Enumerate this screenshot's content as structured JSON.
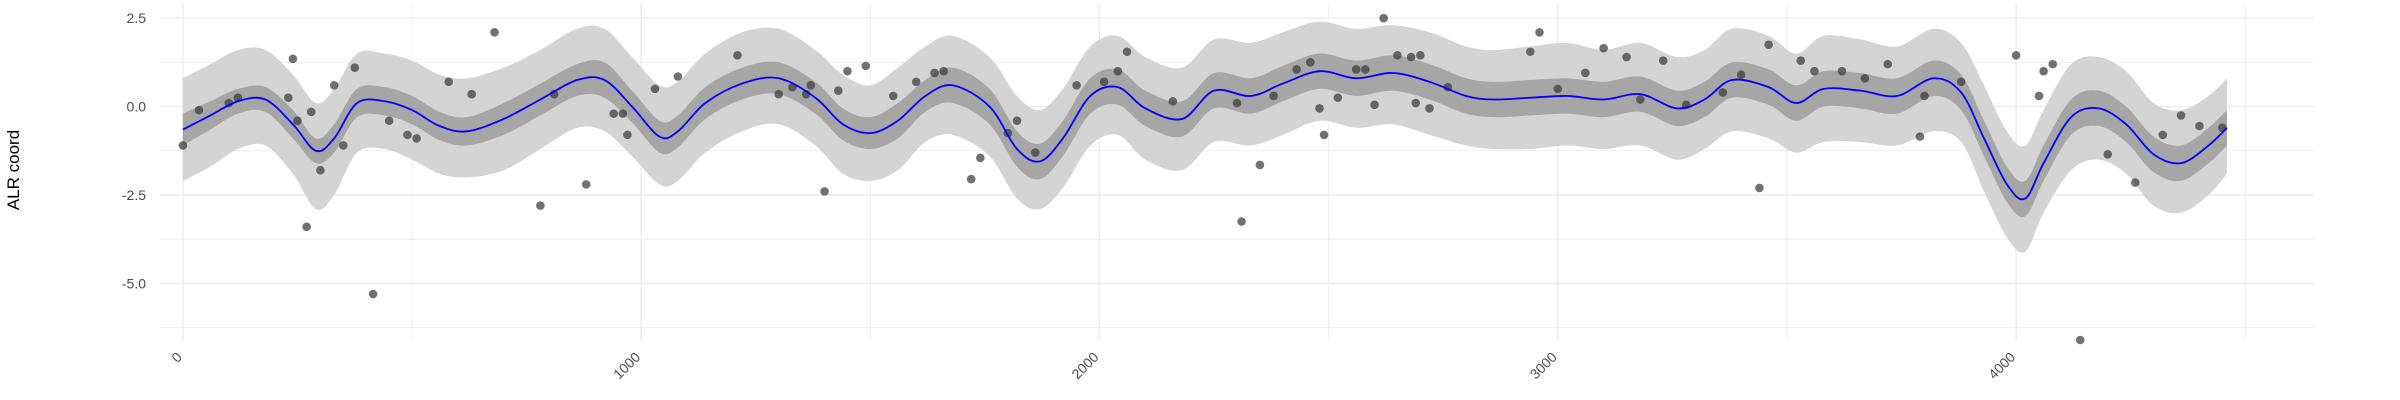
{
  "chart_data": {
    "type": "line",
    "ylabel": "ALR coord",
    "xlabel": "",
    "xlim": [
      -50,
      4650
    ],
    "ylim": [
      -6.6,
      2.9
    ],
    "x_ticks": [
      0,
      1000,
      2000,
      3000,
      4000
    ],
    "x_tick_labels": [
      "0",
      "1000",
      "2000",
      "3000",
      "4000"
    ],
    "y_ticks": [
      2.5,
      0,
      -2.5,
      -5
    ],
    "y_tick_labels": [
      "2.5",
      "0.0",
      "-2.5",
      "-5.0"
    ],
    "grid": true,
    "colors": {
      "mean_line": "#0000ff",
      "inner_band": "#a6a6a6",
      "outer_band": "#d4d4d4",
      "points": "#3a3a3a",
      "grid": "#ebebeb"
    },
    "series": [
      {
        "kind": "mean",
        "x": [
          0,
          60,
          120,
          180,
          240,
          290,
          330,
          380,
          440,
          500,
          560,
          620,
          700,
          780,
          860,
          920,
          980,
          1040,
          1080,
          1140,
          1220,
          1300,
          1380,
          1440,
          1500,
          1560,
          1620,
          1680,
          1760,
          1820,
          1870,
          1920,
          1980,
          2040,
          2100,
          2180,
          2250,
          2330,
          2400,
          2480,
          2560,
          2640,
          2720,
          2800,
          2860,
          2940,
          3020,
          3100,
          3180,
          3260,
          3320,
          3380,
          3460,
          3520,
          3580,
          3660,
          3740,
          3820,
          3880,
          3930,
          3980,
          4020,
          4060,
          4120,
          4180,
          4240,
          4300,
          4360,
          4420,
          4460
        ],
        "y": [
          -0.65,
          -0.25,
          0.15,
          0.2,
          -0.5,
          -1.25,
          -0.9,
          0.1,
          0.15,
          -0.1,
          -0.55,
          -0.7,
          -0.35,
          0.2,
          0.75,
          0.75,
          0.0,
          -0.85,
          -0.7,
          0.1,
          0.65,
          0.8,
          0.25,
          -0.5,
          -0.75,
          -0.4,
          0.3,
          0.6,
          0.0,
          -1.2,
          -1.55,
          -0.9,
          0.3,
          0.55,
          -0.05,
          -0.35,
          0.45,
          0.3,
          0.65,
          1.0,
          0.8,
          0.95,
          0.7,
          0.3,
          0.2,
          0.25,
          0.3,
          0.2,
          0.35,
          -0.05,
          0.2,
          0.75,
          0.55,
          0.1,
          0.5,
          0.45,
          0.3,
          0.8,
          0.4,
          -0.9,
          -2.2,
          -2.6,
          -1.6,
          -0.3,
          -0.05,
          -0.5,
          -1.35,
          -1.6,
          -1.1,
          -0.6
        ]
      },
      {
        "kind": "inner_band",
        "lower": [
          -1.1,
          -0.65,
          -0.2,
          -0.15,
          -0.9,
          -1.6,
          -1.3,
          -0.3,
          -0.25,
          -0.5,
          -0.95,
          -1.1,
          -0.8,
          -0.25,
          0.3,
          0.25,
          -0.45,
          -1.3,
          -1.15,
          -0.35,
          0.2,
          0.35,
          -0.2,
          -0.95,
          -1.2,
          -0.9,
          -0.15,
          0.1,
          -0.5,
          -1.7,
          -2.05,
          -1.4,
          -0.2,
          0.05,
          -0.55,
          -0.85,
          -0.05,
          -0.2,
          0.15,
          0.5,
          0.3,
          0.45,
          0.2,
          -0.2,
          -0.3,
          -0.25,
          -0.2,
          -0.3,
          -0.15,
          -0.55,
          -0.3,
          0.25,
          0.05,
          -0.4,
          0.0,
          -0.05,
          -0.2,
          0.3,
          -0.1,
          -1.4,
          -2.7,
          -3.1,
          -2.1,
          -0.8,
          -0.55,
          -1.0,
          -1.85,
          -2.1,
          -1.6,
          -1.1
        ],
        "upper": [
          -0.2,
          0.15,
          0.5,
          0.55,
          -0.1,
          -0.9,
          -0.5,
          0.5,
          0.55,
          0.3,
          -0.15,
          -0.3,
          0.1,
          0.65,
          1.2,
          1.25,
          0.45,
          -0.4,
          -0.25,
          0.55,
          1.1,
          1.25,
          0.7,
          -0.05,
          -0.3,
          0.1,
          0.75,
          1.1,
          0.5,
          -0.7,
          -1.05,
          -0.4,
          0.8,
          1.05,
          0.45,
          0.15,
          0.95,
          0.8,
          1.15,
          1.5,
          1.3,
          1.45,
          1.2,
          0.8,
          0.7,
          0.75,
          0.8,
          0.7,
          0.85,
          0.45,
          0.7,
          1.25,
          1.05,
          0.6,
          1.0,
          0.95,
          0.8,
          1.3,
          0.9,
          -0.4,
          -1.7,
          -2.1,
          -1.1,
          0.2,
          0.45,
          0.0,
          -0.85,
          -1.1,
          -0.6,
          -0.1
        ]
      },
      {
        "kind": "outer_band",
        "lower": [
          -2.1,
          -1.7,
          -1.2,
          -1.1,
          -1.9,
          -2.9,
          -2.5,
          -1.3,
          -1.2,
          -1.5,
          -1.9,
          -2.0,
          -1.8,
          -1.2,
          -0.6,
          -0.7,
          -1.4,
          -2.2,
          -2.1,
          -1.3,
          -0.7,
          -0.5,
          -1.1,
          -1.9,
          -2.1,
          -1.8,
          -1.0,
          -0.8,
          -1.4,
          -2.6,
          -2.9,
          -2.3,
          -1.1,
          -0.8,
          -1.5,
          -1.8,
          -1.0,
          -1.1,
          -0.8,
          -0.4,
          -0.6,
          -0.5,
          -0.8,
          -1.1,
          -1.2,
          -1.2,
          -1.1,
          -1.2,
          -1.1,
          -1.5,
          -1.2,
          -0.7,
          -0.9,
          -1.3,
          -1.0,
          -1.0,
          -1.1,
          -0.7,
          -1.0,
          -2.4,
          -3.7,
          -4.1,
          -3.0,
          -1.8,
          -1.5,
          -1.9,
          -2.8,
          -3.0,
          -2.5,
          -1.9
        ],
        "upper": [
          0.8,
          1.2,
          1.6,
          1.6,
          0.9,
          0.1,
          0.5,
          1.5,
          1.5,
          1.3,
          0.9,
          0.8,
          1.1,
          1.6,
          2.2,
          2.2,
          1.4,
          0.6,
          0.7,
          1.5,
          2.1,
          2.2,
          1.6,
          0.9,
          0.6,
          1.1,
          1.7,
          2.0,
          1.4,
          0.3,
          -0.1,
          0.5,
          1.7,
          2.0,
          1.4,
          1.1,
          1.9,
          1.8,
          2.1,
          2.4,
          2.2,
          2.3,
          2.1,
          1.7,
          1.6,
          1.7,
          1.8,
          1.6,
          1.8,
          1.4,
          1.6,
          2.2,
          2.0,
          1.5,
          2.0,
          1.9,
          1.7,
          2.2,
          1.8,
          0.6,
          -0.7,
          -1.1,
          -0.1,
          1.2,
          1.4,
          1.0,
          0.1,
          -0.1,
          0.3,
          0.8
        ]
      }
    ],
    "points": {
      "x": [
        0,
        35,
        100,
        120,
        230,
        240,
        250,
        270,
        280,
        300,
        330,
        350,
        375,
        415,
        450,
        490,
        510,
        580,
        630,
        680,
        780,
        810,
        880,
        940,
        960,
        970,
        1030,
        1080,
        1210,
        1300,
        1330,
        1360,
        1370,
        1400,
        1430,
        1450,
        1490,
        1550,
        1600,
        1640,
        1660,
        1720,
        1740,
        1800,
        1820,
        1860,
        1950,
        2010,
        2040,
        2060,
        2160,
        2300,
        2310,
        2350,
        2380,
        2430,
        2460,
        2480,
        2490,
        2520,
        2560,
        2580,
        2600,
        2620,
        2650,
        2680,
        2690,
        2700,
        2720,
        2760,
        2940,
        2960,
        3000,
        3060,
        3100,
        3150,
        3180,
        3230,
        3280,
        3360,
        3400,
        3440,
        3460,
        3530,
        3560,
        3620,
        3670,
        3720,
        3790,
        3800,
        3880,
        4000,
        4050,
        4060,
        4080,
        4140,
        4200,
        4260,
        4320,
        4360,
        4400,
        4450
      ],
      "y": [
        -1.1,
        -0.1,
        0.1,
        0.25,
        0.25,
        1.35,
        -0.4,
        -3.4,
        -0.15,
        -1.8,
        0.6,
        -1.1,
        1.1,
        -5.3,
        -0.4,
        -0.8,
        -0.9,
        0.7,
        0.35,
        2.1,
        -2.8,
        0.35,
        -2.2,
        -0.2,
        -0.2,
        -0.8,
        0.5,
        0.85,
        1.45,
        0.35,
        0.55,
        0.35,
        0.6,
        -2.4,
        0.45,
        1.0,
        1.15,
        0.3,
        0.7,
        0.95,
        1.0,
        -2.05,
        -1.45,
        -0.75,
        -0.4,
        -1.3,
        0.6,
        0.7,
        1.0,
        1.55,
        0.15,
        0.1,
        -3.25,
        -1.65,
        0.3,
        1.05,
        1.25,
        -0.05,
        -0.8,
        0.25,
        1.05,
        1.05,
        0.05,
        2.5,
        1.45,
        1.4,
        0.1,
        1.45,
        -0.05,
        0.55,
        1.55,
        2.1,
        0.5,
        0.95,
        1.65,
        1.4,
        0.2,
        1.3,
        0.05,
        0.4,
        0.9,
        -2.3,
        1.75,
        1.3,
        1.0,
        1.0,
        0.8,
        1.2,
        -0.85,
        0.3,
        0.7,
        1.45,
        0.3,
        1.0,
        1.2,
        -6.6,
        -1.35,
        -2.15,
        -0.8,
        -0.25,
        -0.55,
        -0.6
      ],
      "name": ""
    }
  }
}
